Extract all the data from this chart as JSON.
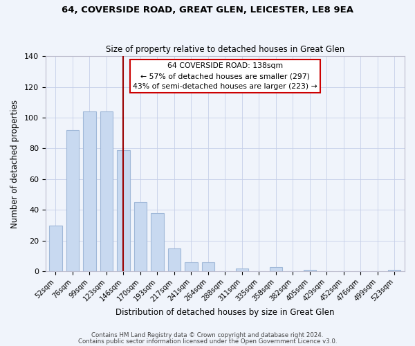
{
  "title": "64, COVERSIDE ROAD, GREAT GLEN, LEICESTER, LE8 9EA",
  "subtitle": "Size of property relative to detached houses in Great Glen",
  "xlabel": "Distribution of detached houses by size in Great Glen",
  "ylabel": "Number of detached properties",
  "bar_color": "#c8d9f0",
  "bar_edge_color": "#a0b8d8",
  "marker_line_color": "#990000",
  "marker_label": "64 COVERSIDE ROAD: 138sqm",
  "annotation_line1": "← 57% of detached houses are smaller (297)",
  "annotation_line2": "43% of semi-detached houses are larger (223) →",
  "categories": [
    "52sqm",
    "76sqm",
    "99sqm",
    "123sqm",
    "146sqm",
    "170sqm",
    "193sqm",
    "217sqm",
    "241sqm",
    "264sqm",
    "288sqm",
    "311sqm",
    "335sqm",
    "358sqm",
    "382sqm",
    "405sqm",
    "429sqm",
    "452sqm",
    "476sqm",
    "499sqm",
    "523sqm"
  ],
  "values": [
    30,
    92,
    104,
    104,
    79,
    45,
    38,
    15,
    6,
    6,
    0,
    2,
    0,
    3,
    0,
    1,
    0,
    0,
    0,
    0,
    1
  ],
  "ylim": [
    0,
    140
  ],
  "yticks": [
    0,
    20,
    40,
    60,
    80,
    100,
    120,
    140
  ],
  "marker_bar_index": 4,
  "footer1": "Contains HM Land Registry data © Crown copyright and database right 2024.",
  "footer2": "Contains public sector information licensed under the Open Government Licence v3.0.",
  "bg_color": "#f0f4fb",
  "plot_bg_color": "#f0f4fb"
}
